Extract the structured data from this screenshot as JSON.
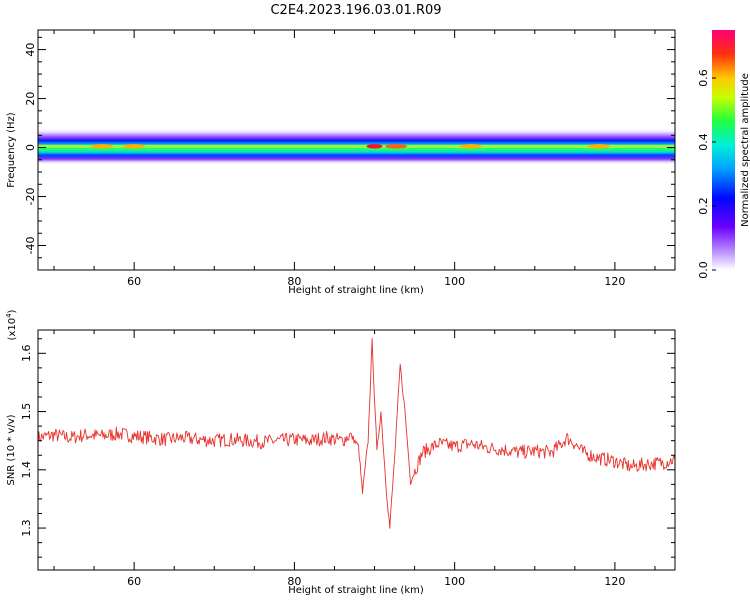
{
  "title": "C2E4.2023.196.03.01.R09",
  "chart_data": [
    {
      "type": "heatmap",
      "xlabel": "Height of straight line (km)",
      "ylabel": "Frequency (Hz)",
      "xlim": [
        48,
        127.5
      ],
      "ylim": [
        -50,
        48
      ],
      "xticks": [
        60,
        80,
        100,
        120
      ],
      "yticks": [
        -40,
        -20,
        0,
        20,
        40
      ],
      "band_hz": [
        -3,
        4
      ],
      "hot_spots_km": [
        {
          "x": 90,
          "amp": 0.75
        },
        {
          "x": 92.7,
          "amp": 0.6
        },
        {
          "x": 102,
          "amp": 0.55
        },
        {
          "x": 118,
          "amp": 0.5
        },
        {
          "x": 56,
          "amp": 0.55
        },
        {
          "x": 60,
          "amp": 0.5
        }
      ],
      "colorbar": {
        "label": "Normalized spectral amplitude",
        "range": [
          0,
          0.75
        ],
        "ticks": [
          "0.0",
          "0.2",
          "0.4",
          "0.6"
        ]
      }
    },
    {
      "type": "line",
      "xlabel": "Height of straight line (km)",
      "ylabel": "SNR (10 * v/v)",
      "multiplier_label": "(x10",
      "multiplier_exp": "4",
      "xlim": [
        48,
        127.5
      ],
      "ylim": [
        1.228,
        1.64
      ],
      "xticks": [
        60,
        80,
        100,
        120
      ],
      "yticks": [
        "1.3",
        "1.4",
        "1.5",
        "1.6"
      ],
      "series": [
        {
          "color": "#e8322c",
          "x": [
            48,
            50,
            52,
            54,
            56,
            58,
            60,
            62,
            64,
            66,
            68,
            70,
            72,
            74,
            76,
            78,
            80,
            82,
            84,
            86,
            87,
            88,
            88.5,
            89.2,
            89.7,
            90.3,
            90.8,
            91.4,
            91.9,
            92.6,
            93.2,
            93.8,
            94.5,
            96,
            98,
            100,
            102,
            104,
            106,
            108,
            110,
            112,
            113,
            114,
            115,
            116,
            118,
            120,
            122,
            124,
            126,
            127.5
          ],
          "y": [
            1.455,
            1.46,
            1.455,
            1.46,
            1.458,
            1.462,
            1.458,
            1.455,
            1.452,
            1.455,
            1.452,
            1.45,
            1.452,
            1.45,
            1.448,
            1.45,
            1.452,
            1.45,
            1.455,
            1.45,
            1.46,
            1.44,
            1.36,
            1.45,
            1.62,
            1.43,
            1.5,
            1.38,
            1.3,
            1.44,
            1.58,
            1.5,
            1.38,
            1.43,
            1.445,
            1.44,
            1.445,
            1.438,
            1.435,
            1.43,
            1.432,
            1.43,
            1.44,
            1.455,
            1.445,
            1.43,
            1.42,
            1.415,
            1.405,
            1.41,
            1.412,
            1.418
          ]
        }
      ]
    }
  ]
}
